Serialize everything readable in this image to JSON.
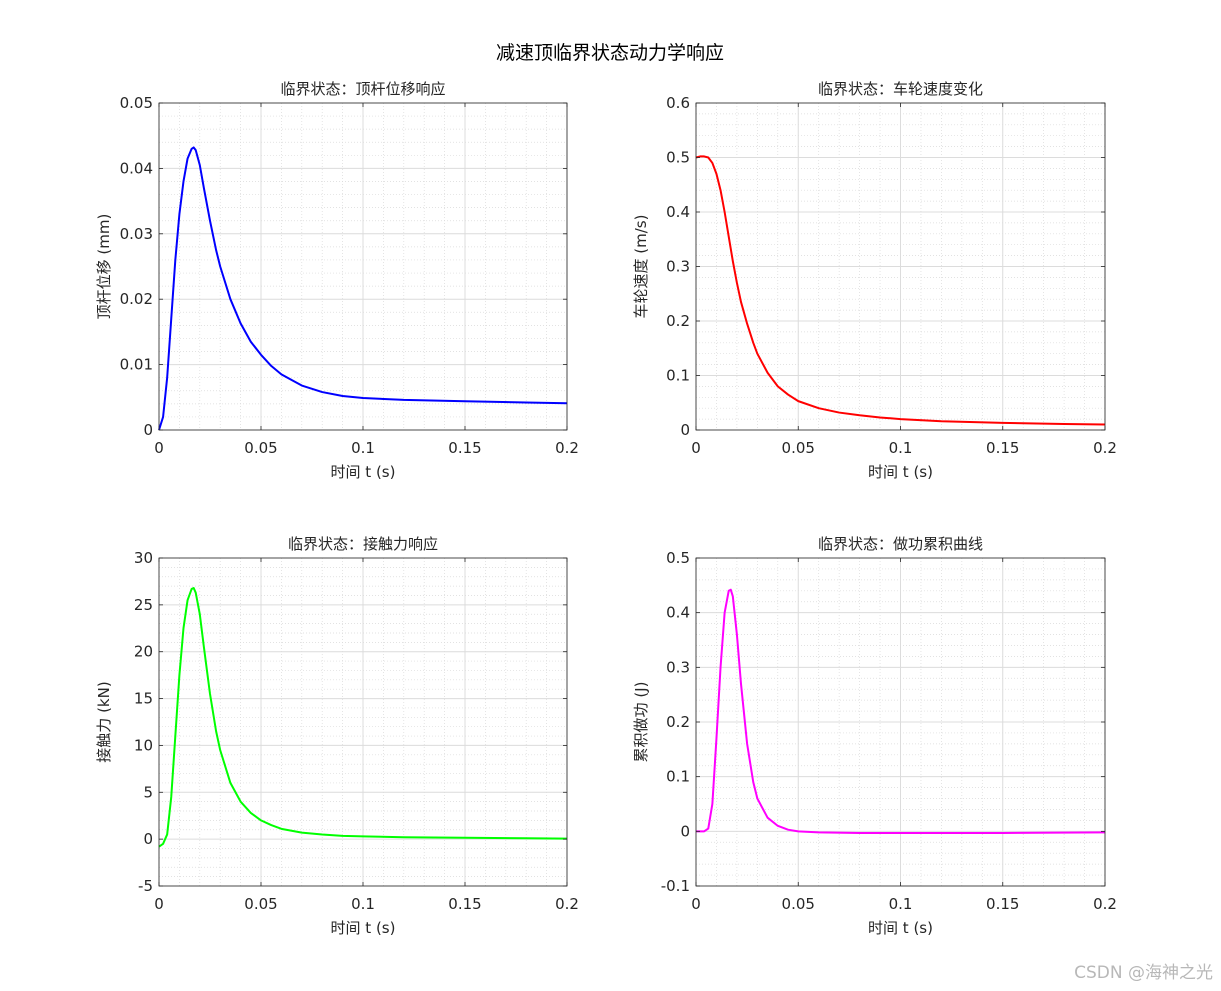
{
  "figure": {
    "title": "减速顶临界状态动力学响应",
    "watermark": "CSDN @海神之光"
  },
  "chart_data": [
    {
      "type": "line",
      "title": "临界状态：顶杆位移响应",
      "xlabel": "时间 t (s)",
      "ylabel": "顶杆位移 (mm)",
      "xlim": [
        0,
        0.2
      ],
      "ylim": [
        0,
        0.05
      ],
      "xticks": [
        0,
        0.05,
        0.1,
        0.15,
        0.2
      ],
      "xtick_labels": [
        "0",
        "0.05",
        "0.1",
        "0.15",
        "0.2"
      ],
      "yticks": [
        0,
        0.01,
        0.02,
        0.03,
        0.04,
        0.05
      ],
      "ytick_labels": [
        "0",
        "0.01",
        "0.02",
        "0.03",
        "0.04",
        "0.05"
      ],
      "grid": true,
      "minor_grid": true,
      "color": "#0000ff",
      "series": [
        {
          "x": [
            0,
            0.002,
            0.004,
            0.006,
            0.008,
            0.01,
            0.012,
            0.014,
            0.016,
            0.017,
            0.018,
            0.02,
            0.022,
            0.025,
            0.028,
            0.03,
            0.035,
            0.04,
            0.045,
            0.05,
            0.055,
            0.06,
            0.07,
            0.08,
            0.09,
            0.1,
            0.12,
            0.15,
            0.18,
            0.2
          ],
          "y": [
            0,
            0.002,
            0.008,
            0.017,
            0.026,
            0.033,
            0.038,
            0.0415,
            0.043,
            0.0432,
            0.0428,
            0.0405,
            0.037,
            0.032,
            0.0275,
            0.025,
            0.02,
            0.0163,
            0.0135,
            0.0115,
            0.0098,
            0.0085,
            0.0068,
            0.0058,
            0.0052,
            0.0049,
            0.0046,
            0.0044,
            0.0042,
            0.0041
          ]
        }
      ]
    },
    {
      "type": "line",
      "title": "临界状态：车轮速度变化",
      "xlabel": "时间 t (s)",
      "ylabel": "车轮速度 (m/s)",
      "xlim": [
        0,
        0.2
      ],
      "ylim": [
        0,
        0.6
      ],
      "xticks": [
        0,
        0.05,
        0.1,
        0.15,
        0.2
      ],
      "xtick_labels": [
        "0",
        "0.05",
        "0.1",
        "0.15",
        "0.2"
      ],
      "yticks": [
        0,
        0.1,
        0.2,
        0.3,
        0.4,
        0.5,
        0.6
      ],
      "ytick_labels": [
        "0",
        "0.1",
        "0.2",
        "0.3",
        "0.4",
        "0.5",
        "0.6"
      ],
      "grid": true,
      "minor_grid": true,
      "color": "#ff0000",
      "series": [
        {
          "x": [
            0,
            0.002,
            0.004,
            0.006,
            0.008,
            0.01,
            0.012,
            0.014,
            0.016,
            0.018,
            0.02,
            0.022,
            0.025,
            0.028,
            0.03,
            0.035,
            0.04,
            0.045,
            0.05,
            0.06,
            0.07,
            0.08,
            0.09,
            0.1,
            0.12,
            0.15,
            0.18,
            0.2
          ],
          "y": [
            0.5,
            0.502,
            0.502,
            0.5,
            0.49,
            0.47,
            0.44,
            0.4,
            0.355,
            0.31,
            0.27,
            0.235,
            0.195,
            0.16,
            0.14,
            0.105,
            0.08,
            0.065,
            0.053,
            0.04,
            0.032,
            0.027,
            0.023,
            0.02,
            0.016,
            0.013,
            0.011,
            0.01
          ]
        }
      ]
    },
    {
      "type": "line",
      "title": "临界状态：接触力响应",
      "xlabel": "时间 t (s)",
      "ylabel": "接触力 (kN)",
      "xlim": [
        0,
        0.2
      ],
      "ylim": [
        -5,
        30
      ],
      "xticks": [
        0,
        0.05,
        0.1,
        0.15,
        0.2
      ],
      "xtick_labels": [
        "0",
        "0.05",
        "0.1",
        "0.15",
        "0.2"
      ],
      "yticks": [
        -5,
        0,
        5,
        10,
        15,
        20,
        25,
        30
      ],
      "ytick_labels": [
        "-5",
        "0",
        "5",
        "10",
        "15",
        "20",
        "25",
        "30"
      ],
      "grid": true,
      "minor_grid": true,
      "color": "#00ff00",
      "series": [
        {
          "x": [
            0,
            0.002,
            0.004,
            0.006,
            0.008,
            0.01,
            0.012,
            0.014,
            0.016,
            0.017,
            0.018,
            0.02,
            0.022,
            0.025,
            0.028,
            0.03,
            0.035,
            0.04,
            0.045,
            0.05,
            0.055,
            0.06,
            0.07,
            0.08,
            0.09,
            0.1,
            0.12,
            0.15,
            0.18,
            0.2
          ],
          "y": [
            -0.8,
            -0.5,
            0.5,
            4.5,
            11.0,
            17.5,
            22.5,
            25.5,
            26.7,
            26.8,
            26.3,
            24.0,
            20.5,
            15.5,
            11.5,
            9.5,
            6.0,
            4.0,
            2.8,
            2.0,
            1.5,
            1.1,
            0.7,
            0.5,
            0.35,
            0.3,
            0.2,
            0.15,
            0.1,
            0.05
          ]
        }
      ]
    },
    {
      "type": "line",
      "title": "临界状态：做功累积曲线",
      "xlabel": "时间 t (s)",
      "ylabel": "累积做功 (J)",
      "xlim": [
        0,
        0.2
      ],
      "ylim": [
        -0.1,
        0.5
      ],
      "xticks": [
        0,
        0.05,
        0.1,
        0.15,
        0.2
      ],
      "xtick_labels": [
        "0",
        "0.05",
        "0.1",
        "0.15",
        "0.2"
      ],
      "yticks": [
        -0.1,
        0,
        0.1,
        0.2,
        0.3,
        0.4,
        0.5
      ],
      "ytick_labels": [
        "-0.1",
        "0",
        "0.1",
        "0.2",
        "0.3",
        "0.4",
        "0.5"
      ],
      "grid": true,
      "minor_grid": true,
      "color": "#ff00ff",
      "series": [
        {
          "x": [
            0,
            0.002,
            0.004,
            0.006,
            0.008,
            0.01,
            0.012,
            0.014,
            0.016,
            0.017,
            0.018,
            0.02,
            0.022,
            0.025,
            0.028,
            0.03,
            0.035,
            0.04,
            0.045,
            0.05,
            0.06,
            0.08,
            0.1,
            0.15,
            0.2
          ],
          "y": [
            0,
            0,
            0,
            0.005,
            0.05,
            0.17,
            0.3,
            0.4,
            0.44,
            0.442,
            0.43,
            0.36,
            0.27,
            0.16,
            0.09,
            0.06,
            0.025,
            0.01,
            0.003,
            0.0,
            -0.002,
            -0.003,
            -0.003,
            -0.003,
            -0.002
          ]
        }
      ]
    }
  ]
}
